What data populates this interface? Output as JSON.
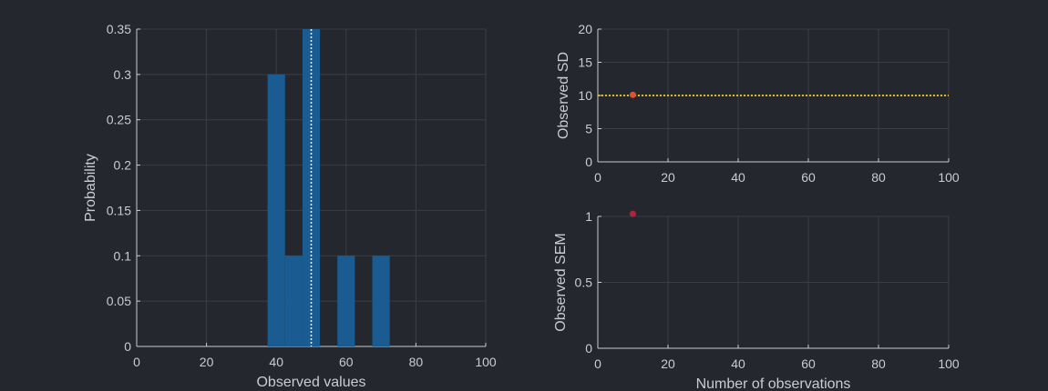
{
  "colors": {
    "background": "#24272e",
    "grid": "#3a3e46",
    "axis": "#c9ccd2",
    "bar": "#1a5c91",
    "mean_line": "#ffffff",
    "sd_line": "#e7b81a",
    "sd_point": "#e0502a",
    "sem_point": "#b3213a"
  },
  "chart_data": [
    {
      "type": "bar",
      "xlabel": "Observed values",
      "ylabel": "Probability",
      "xlim": [
        0,
        100
      ],
      "ylim": [
        0,
        0.35
      ],
      "xticks": [
        0,
        20,
        40,
        60,
        80,
        100
      ],
      "yticks": [
        0,
        0.05,
        0.1,
        0.15,
        0.2,
        0.25,
        0.3,
        0.35
      ],
      "xtick_labels": [
        "0",
        "20",
        "40",
        "60",
        "80",
        "100"
      ],
      "ytick_labels": [
        "0",
        "0.05",
        "0.1",
        "0.15",
        "0.2",
        "0.25",
        "0.3",
        "0.35"
      ],
      "grid": true,
      "bin_width": 5,
      "bins": [
        {
          "start": 37.5,
          "end": 42.5,
          "value": 0.3
        },
        {
          "start": 42.5,
          "end": 47.5,
          "value": 0.1
        },
        {
          "start": 47.5,
          "end": 52.5,
          "value": 0.35
        },
        {
          "start": 57.5,
          "end": 62.5,
          "value": 0.1
        },
        {
          "start": 67.5,
          "end": 72.5,
          "value": 0.1
        }
      ],
      "mean_line_x": 50
    },
    {
      "type": "line",
      "xlabel": "",
      "ylabel": "Observed SD",
      "xlim": [
        0,
        100
      ],
      "ylim": [
        0,
        20
      ],
      "xticks": [
        0,
        20,
        40,
        60,
        80,
        100
      ],
      "yticks": [
        0,
        5,
        10,
        15,
        20
      ],
      "xtick_labels": [
        "0",
        "20",
        "40",
        "60",
        "80",
        "100"
      ],
      "ytick_labels": [
        "0",
        "5",
        "10",
        "15",
        "20"
      ],
      "grid": true,
      "reference_line_y": 10,
      "points": [
        {
          "x": 10,
          "y": 10.1
        }
      ]
    },
    {
      "type": "scatter",
      "xlabel": "Number of observations",
      "ylabel": "Observed SEM",
      "xlim": [
        0,
        100
      ],
      "ylim": [
        0,
        1
      ],
      "xticks": [
        0,
        20,
        40,
        60,
        80,
        100
      ],
      "yticks": [
        0,
        0.5,
        1
      ],
      "xtick_labels": [
        "0",
        "20",
        "40",
        "60",
        "80",
        "100"
      ],
      "ytick_labels": [
        "0",
        "0.5",
        "1"
      ],
      "grid": true,
      "points": [
        {
          "x": 10,
          "y": 1.02
        }
      ]
    }
  ]
}
